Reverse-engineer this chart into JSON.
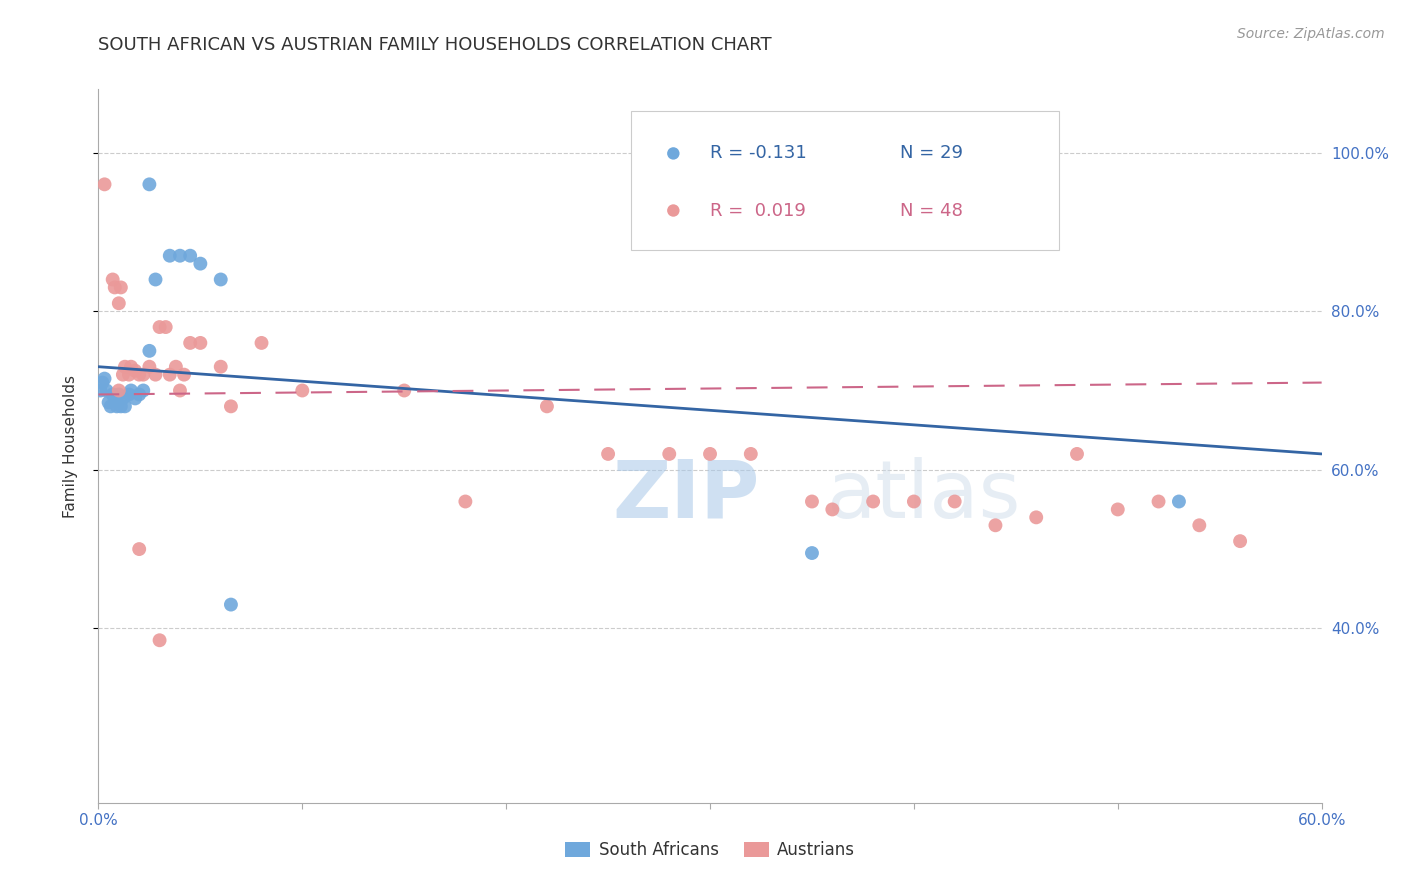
{
  "title": "SOUTH AFRICAN VS AUSTRIAN FAMILY HOUSEHOLDS CORRELATION CHART",
  "source": "Source: ZipAtlas.com",
  "ylabel": "Family Households",
  "watermark": "ZIPatlas",
  "legend_blue_r": "R = -0.131",
  "legend_blue_n": "N = 29",
  "legend_pink_r": "R = 0.019",
  "legend_pink_n": "N = 48",
  "sa_color": "#6fa8dc",
  "au_color": "#ea9999",
  "blue_line_color": "#3465a4",
  "pink_line_color": "#cc6688",
  "xlim": [
    0.0,
    0.6
  ],
  "ylim": [
    0.18,
    1.08
  ],
  "ytick_vals": [
    0.4,
    0.6,
    0.8,
    1.0
  ],
  "ytick_labels": [
    "40.0%",
    "60.0%",
    "80.0%",
    "100.0%"
  ],
  "xticks": [
    0.0,
    0.1,
    0.2,
    0.3,
    0.4,
    0.5,
    0.6
  ],
  "xtick_labels": [
    "0.0%",
    "",
    "",
    "",
    "",
    "",
    "60.0%"
  ],
  "grid_color": "#cccccc",
  "bg_color": "#ffffff",
  "title_color": "#333333",
  "axis_label_color": "#4472c4",
  "south_africans_x": [
    0.001,
    0.002,
    0.003,
    0.004,
    0.005,
    0.006,
    0.007,
    0.008,
    0.009,
    0.01,
    0.011,
    0.012,
    0.013,
    0.015,
    0.016,
    0.018,
    0.02,
    0.022,
    0.025,
    0.028,
    0.035,
    0.04,
    0.045,
    0.05,
    0.06,
    0.065,
    0.025,
    0.35,
    0.53
  ],
  "south_africans_y": [
    0.7,
    0.71,
    0.715,
    0.7,
    0.685,
    0.68,
    0.695,
    0.69,
    0.68,
    0.695,
    0.68,
    0.69,
    0.68,
    0.695,
    0.7,
    0.69,
    0.695,
    0.7,
    0.75,
    0.84,
    0.87,
    0.87,
    0.87,
    0.86,
    0.84,
    0.43,
    0.96,
    0.495,
    0.56
  ],
  "austrians_x": [
    0.003,
    0.007,
    0.008,
    0.01,
    0.011,
    0.012,
    0.013,
    0.015,
    0.016,
    0.018,
    0.02,
    0.022,
    0.025,
    0.028,
    0.03,
    0.033,
    0.035,
    0.038,
    0.04,
    0.042,
    0.045,
    0.05,
    0.06,
    0.065,
    0.08,
    0.1,
    0.15,
    0.18,
    0.22,
    0.25,
    0.28,
    0.3,
    0.32,
    0.35,
    0.36,
    0.38,
    0.4,
    0.42,
    0.44,
    0.46,
    0.48,
    0.5,
    0.52,
    0.54,
    0.56,
    0.01,
    0.02,
    0.03
  ],
  "austrians_y": [
    0.96,
    0.84,
    0.83,
    0.81,
    0.83,
    0.72,
    0.73,
    0.72,
    0.73,
    0.725,
    0.72,
    0.72,
    0.73,
    0.72,
    0.78,
    0.78,
    0.72,
    0.73,
    0.7,
    0.72,
    0.76,
    0.76,
    0.73,
    0.68,
    0.76,
    0.7,
    0.7,
    0.56,
    0.68,
    0.62,
    0.62,
    0.62,
    0.62,
    0.56,
    0.55,
    0.56,
    0.56,
    0.56,
    0.53,
    0.54,
    0.62,
    0.55,
    0.56,
    0.53,
    0.51,
    0.7,
    0.5,
    0.385
  ],
  "sa_trend_x": [
    0.0,
    0.6
  ],
  "sa_trend_y": [
    0.73,
    0.62
  ],
  "au_trend_x": [
    0.0,
    0.6
  ],
  "au_trend_y": [
    0.695,
    0.71
  ]
}
